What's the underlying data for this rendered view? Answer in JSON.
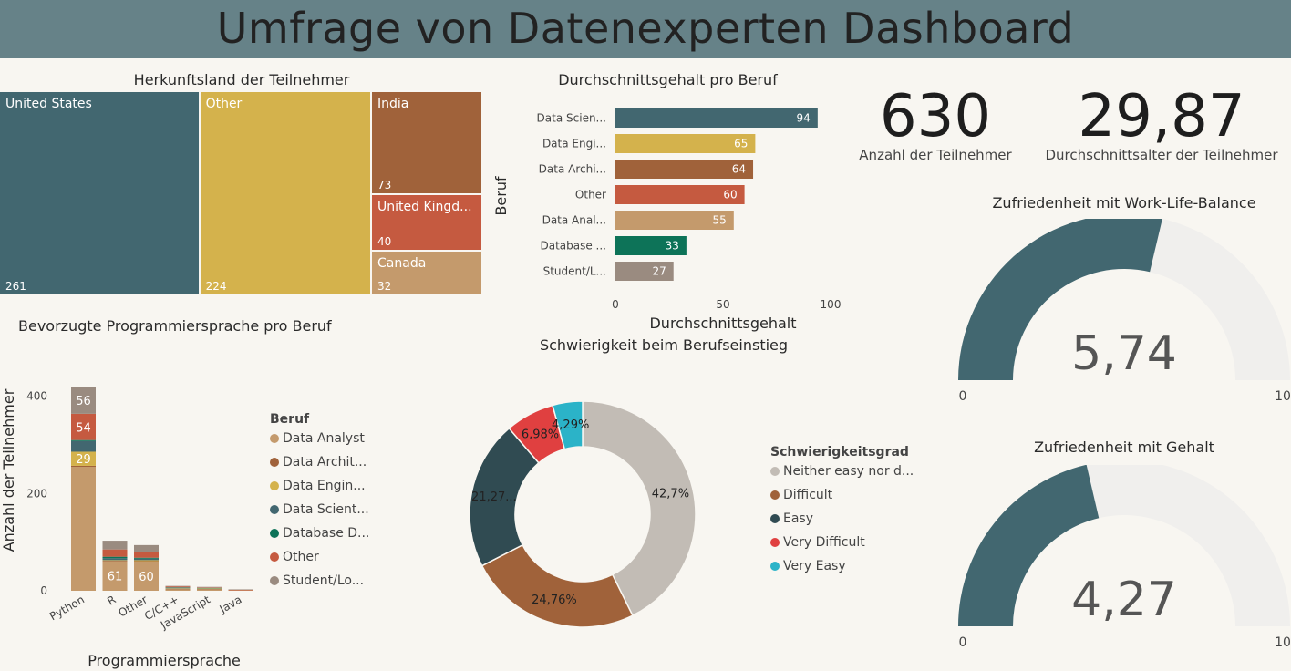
{
  "header": {
    "title": "Umfrage von Datenexperten Dashboard"
  },
  "kpis": [
    {
      "value": "630",
      "label": "Anzahl der Teilnehmer"
    },
    {
      "value": "29,87",
      "label": "Durchschnittsalter der Teilnehmer"
    }
  ],
  "chart_data": [
    {
      "id": "treemap",
      "type": "treemap",
      "title": "Herkunftsland der Teilnehmer",
      "items": [
        {
          "label": "United States",
          "value": 261,
          "color": "#426770"
        },
        {
          "label": "Other",
          "value": 224,
          "color": "#d4b24c"
        },
        {
          "label": "India",
          "value": 73,
          "color": "#a0623a"
        },
        {
          "label": "United Kingd...",
          "value": 40,
          "color": "#c55a40"
        },
        {
          "label": "Canada",
          "value": 32,
          "color": "#c49a6c"
        }
      ]
    },
    {
      "id": "salary",
      "type": "bar",
      "orientation": "horizontal",
      "title": "Durchschnittsgehalt pro Beruf",
      "xlabel": "Durchschnittsgehalt",
      "ylabel": "Beruf",
      "xlim": [
        0,
        100
      ],
      "xticks": [
        "0",
        "50",
        "100"
      ],
      "categories": [
        "Data Scien...",
        "Data Engi...",
        "Data Archi...",
        "Other",
        "Data Anal...",
        "Database ...",
        "Student/L..."
      ],
      "values": [
        94,
        65,
        64,
        60,
        55,
        33,
        27
      ],
      "colors": [
        "#426770",
        "#d4b24c",
        "#a0623a",
        "#c55a40",
        "#c49a6c",
        "#0d7358",
        "#9a8b80"
      ]
    },
    {
      "id": "gauge1",
      "type": "gauge",
      "title": "Zufriedenheit mit Work-Life-Balance",
      "value": 5.74,
      "value_label": "5,74",
      "range": [
        0,
        10
      ],
      "min_label": "0",
      "max_label": "10",
      "colors": {
        "fill": "#426770",
        "track": "#f0efed"
      }
    },
    {
      "id": "stacked",
      "type": "bar",
      "stacked": true,
      "title": "Bevorzugte Programmiersprache pro Beruf",
      "xlabel": "Programmiersprache",
      "ylabel": "Anzahl der Teilnehmer",
      "ylim": [
        0,
        420
      ],
      "yticks": [
        "0",
        "200",
        "400"
      ],
      "categories": [
        "Python",
        "R",
        "Other",
        "C/C++",
        "JavaScript",
        "Java"
      ],
      "legend_title": "Beruf",
      "series": [
        {
          "name": "Data Analyst",
          "color": "#c49a6c",
          "values": [
            255,
            61,
            60,
            3,
            3,
            1
          ]
        },
        {
          "name": "Data Archit...",
          "color": "#a0623a",
          "values": [
            2,
            1,
            1,
            1,
            1,
            0
          ]
        },
        {
          "name": "Data Engin...",
          "color": "#d4b24c",
          "values": [
            29,
            1,
            2,
            1,
            1,
            0
          ]
        },
        {
          "name": "Data Scient...",
          "color": "#426770",
          "values": [
            22,
            4,
            3,
            1,
            0,
            0
          ]
        },
        {
          "name": "Database D...",
          "color": "#0d7358",
          "values": [
            2,
            3,
            2,
            1,
            1,
            0
          ]
        },
        {
          "name": "Other",
          "color": "#c55a40",
          "values": [
            54,
            15,
            12,
            2,
            1,
            1
          ]
        },
        {
          "name": "Student/Lo...",
          "color": "#9a8b80",
          "values": [
            56,
            18,
            14,
            1,
            1,
            1
          ]
        }
      ],
      "data_labels": [
        {
          "category": 0,
          "series": 0,
          "text": ""
        },
        {
          "category": 0,
          "series": 2,
          "text": "29"
        },
        {
          "category": 0,
          "series": 5,
          "text": "54"
        },
        {
          "category": 0,
          "series": 6,
          "text": "56"
        },
        {
          "category": 1,
          "series": 0,
          "text": "61"
        },
        {
          "category": 2,
          "series": 0,
          "text": "60"
        }
      ]
    },
    {
      "id": "donut",
      "type": "pie",
      "title": "Schwierigkeit beim Berufseinstieg",
      "legend_title": "Schwierigkeitsgrad",
      "slices": [
        {
          "label": "Neither easy nor d...",
          "value": 42.7,
          "text": "42,7%",
          "color": "#c2bcb5"
        },
        {
          "label": "Difficult",
          "value": 24.76,
          "text": "24,76%",
          "color": "#a0623a"
        },
        {
          "label": "Easy",
          "value": 21.27,
          "text": "21,27...",
          "color": "#304b52"
        },
        {
          "label": "Very Difficult",
          "value": 6.98,
          "text": "6,98%",
          "color": "#e04040"
        },
        {
          "label": "Very Easy",
          "value": 4.29,
          "text": "4,29%",
          "color": "#2bb3c8"
        }
      ]
    },
    {
      "id": "gauge2",
      "type": "gauge",
      "title": "Zufriedenheit mit Gehalt",
      "value": 4.27,
      "value_label": "4,27",
      "range": [
        0,
        10
      ],
      "min_label": "0",
      "max_label": "10",
      "colors": {
        "fill": "#426770",
        "track": "#f0efed"
      }
    }
  ]
}
